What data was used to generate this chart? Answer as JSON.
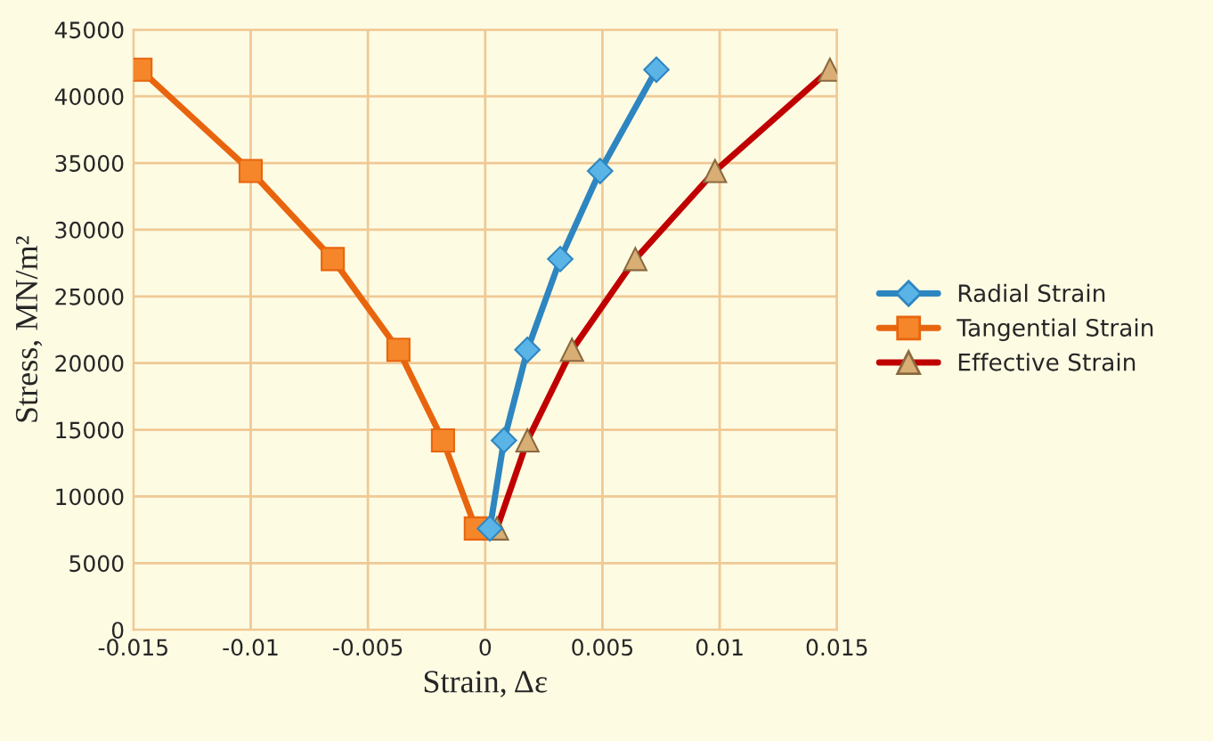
{
  "chart_data": {
    "type": "line",
    "xlabel": "Strain, Δε",
    "ylabel": "Stress, MN/m²",
    "xlim": [
      -0.015,
      0.015
    ],
    "xticks": [
      -0.015,
      -0.01,
      -0.005,
      0,
      0.005,
      0.01,
      0.015
    ],
    "ylim": [
      0,
      45000
    ],
    "yticks": [
      0,
      5000,
      10000,
      15000,
      20000,
      25000,
      30000,
      35000,
      40000,
      45000
    ],
    "grid": true,
    "legend": "right",
    "series": [
      {
        "name": "Radial Strain",
        "color": "#2e86c1",
        "marker": "diamond",
        "x": [
          0.0002,
          0.0008,
          0.0018,
          0.0032,
          0.0049,
          0.0073
        ],
        "values": [
          7600,
          14200,
          21000,
          27800,
          34400,
          42000
        ]
      },
      {
        "name": "Tangential Strain",
        "color": "#e8650e",
        "marker": "square",
        "x": [
          -0.0004,
          -0.0018,
          -0.0037,
          -0.0065,
          -0.01,
          -0.0147
        ],
        "values": [
          7600,
          14200,
          21000,
          27800,
          34400,
          42000
        ]
      },
      {
        "name": "Effective Strain",
        "color": "#c00000",
        "marker": "triangle",
        "x": [
          0.0005,
          0.0018,
          0.0037,
          0.0064,
          0.0098,
          0.0147
        ],
        "values": [
          7600,
          14200,
          21000,
          27800,
          34400,
          42000
        ]
      }
    ]
  }
}
